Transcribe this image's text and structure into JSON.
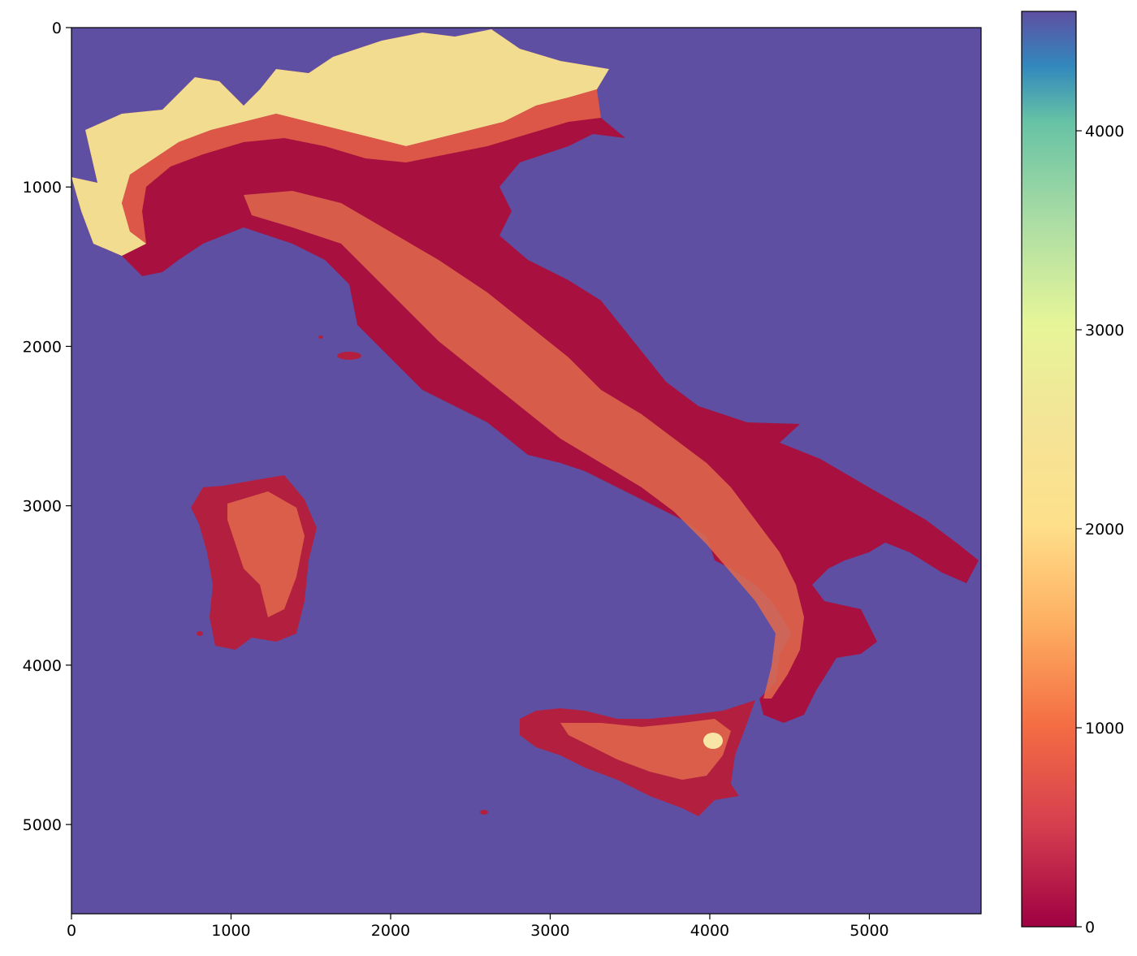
{
  "chart_data": {
    "type": "heatmap",
    "title": "",
    "xlabel": "",
    "ylabel": "",
    "xlim": [
      0,
      5700
    ],
    "ylim": [
      5560,
      0
    ],
    "x_ticks": [
      "0",
      "1000",
      "2000",
      "3000",
      "4000",
      "5000"
    ],
    "y_ticks": [
      "0",
      "1000",
      "2000",
      "3000",
      "4000",
      "5000"
    ],
    "grid": false,
    "colormap": "Spectral",
    "colorbar": {
      "range": [
        0,
        4600
      ],
      "ticks": [
        "0",
        "1000",
        "2000",
        "3000",
        "4000"
      ],
      "stops": [
        "#9e0142",
        "#d53e4f",
        "#f46d43",
        "#fdae61",
        "#fee08b",
        "#e6f598",
        "#abdda4",
        "#66c2a5",
        "#3288bd",
        "#5e4fa2"
      ]
    },
    "colors": {
      "background_value_color": "#5e4fa2",
      "lowland": "#a8103f",
      "midland": "#e8694a",
      "highland": "#f2dc8f"
    }
  }
}
